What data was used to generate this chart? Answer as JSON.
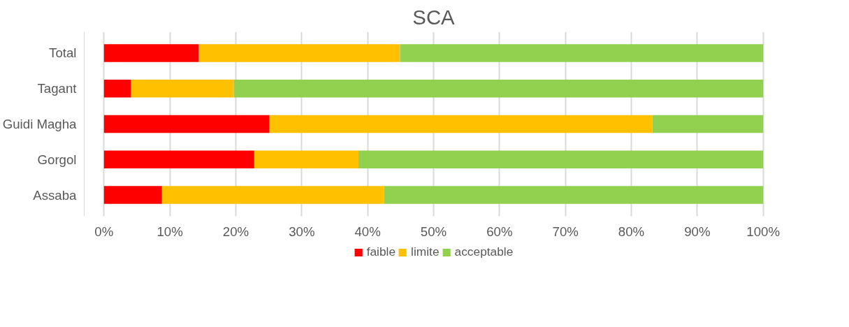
{
  "chart_data": {
    "type": "bar",
    "orientation": "horizontal",
    "stacked": true,
    "title": "SCA",
    "categories": [
      "Total",
      "Tagant",
      "Guidi Magha",
      "Gorgol",
      "Assaba"
    ],
    "series": [
      {
        "name": "faible",
        "color": "#ff0000",
        "values": [
          14.4,
          4.1,
          25.1,
          22.8,
          8.8
        ]
      },
      {
        "name": "limite",
        "color": "#ffc000",
        "values": [
          30.5,
          15.6,
          58.1,
          15.8,
          33.7
        ]
      },
      {
        "name": "acceptable",
        "color": "#92d050",
        "values": [
          55.1,
          80.3,
          16.8,
          61.4,
          57.5
        ]
      }
    ],
    "xlim": [
      0,
      100
    ],
    "xticks": [
      {
        "value": 0,
        "label": "0%"
      },
      {
        "value": 10,
        "label": "10%"
      },
      {
        "value": 20,
        "label": "20%"
      },
      {
        "value": 30,
        "label": "30%"
      },
      {
        "value": 40,
        "label": "40%"
      },
      {
        "value": 50,
        "label": "50%"
      },
      {
        "value": 60,
        "label": "60%"
      },
      {
        "value": 70,
        "label": "70%"
      },
      {
        "value": 80,
        "label": "80%"
      },
      {
        "value": 90,
        "label": "90%"
      },
      {
        "value": 100,
        "label": "100%"
      }
    ],
    "grid": "x",
    "legend": "bottom"
  }
}
